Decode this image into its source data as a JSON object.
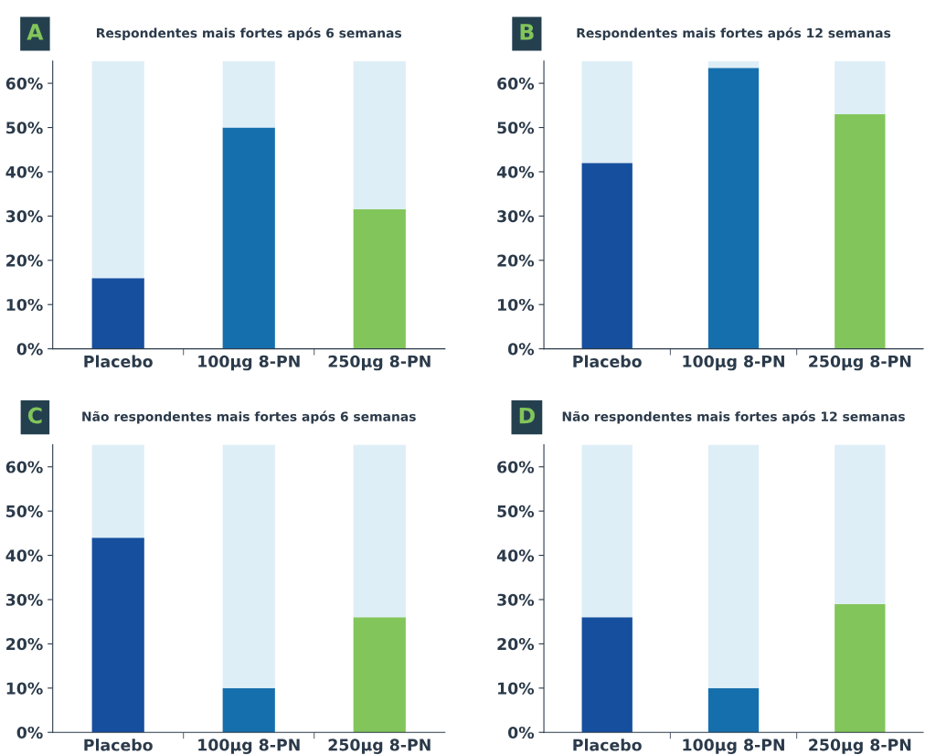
{
  "chart_data": [
    {
      "type": "bar",
      "title": "Respondentes mais fortes após 6 semanas",
      "annotations": [
        "A"
      ],
      "categories": [
        "Placebo",
        "100µg 8-PN",
        "250µg 8-PN"
      ],
      "stacked": true,
      "series": [
        {
          "colors": [
            "#154f9e",
            "#166fad",
            "#82c55a"
          ],
          "values": [
            16,
            50,
            31.5
          ]
        },
        {
          "color": "#deeef6",
          "values": [
            49,
            15,
            33.5
          ]
        }
      ],
      "ylim": [
        0,
        65
      ],
      "yticks": [
        {
          "value": 0,
          "label": "0%"
        },
        {
          "value": 10,
          "label": "10%"
        },
        {
          "value": 20,
          "label": "20%"
        },
        {
          "value": 30,
          "label": "30%"
        },
        {
          "value": 40,
          "label": "40%"
        },
        {
          "value": 50,
          "label": "50%"
        },
        {
          "value": 60,
          "label": "60%"
        }
      ],
      "grid": false
    },
    {
      "type": "bar",
      "title": "Respondentes mais fortes após 12 semanas",
      "annotations": [
        "B"
      ],
      "categories": [
        "Placebo",
        "100µg 8-PN",
        "250µg 8-PN"
      ],
      "stacked": true,
      "series": [
        {
          "colors": [
            "#154f9e",
            "#166fad",
            "#82c55a"
          ],
          "values": [
            42,
            63.5,
            53
          ]
        },
        {
          "color": "#deeef6",
          "values": [
            23,
            1.5,
            12
          ]
        }
      ],
      "ylim": [
        0,
        65
      ],
      "yticks": [
        {
          "value": 0,
          "label": "0%"
        },
        {
          "value": 10,
          "label": "10%"
        },
        {
          "value": 20,
          "label": "20%"
        },
        {
          "value": 30,
          "label": "30%"
        },
        {
          "value": 40,
          "label": "40%"
        },
        {
          "value": 50,
          "label": "50%"
        },
        {
          "value": 60,
          "label": "60%"
        }
      ],
      "grid": false
    },
    {
      "type": "bar",
      "title": "Não respondentes mais fortes após 6 semanas",
      "annotations": [
        "C"
      ],
      "categories": [
        "Placebo",
        "100µg 8-PN",
        "250µg 8-PN"
      ],
      "stacked": true,
      "series": [
        {
          "colors": [
            "#154f9e",
            "#166fad",
            "#82c55a"
          ],
          "values": [
            44,
            10,
            26
          ]
        },
        {
          "color": "#deeef6",
          "values": [
            21,
            55,
            39
          ]
        }
      ],
      "ylim": [
        0,
        65
      ],
      "yticks": [
        {
          "value": 0,
          "label": "0%"
        },
        {
          "value": 10,
          "label": "10%"
        },
        {
          "value": 20,
          "label": "20%"
        },
        {
          "value": 30,
          "label": "30%"
        },
        {
          "value": 40,
          "label": "40%"
        },
        {
          "value": 50,
          "label": "50%"
        },
        {
          "value": 60,
          "label": "60%"
        }
      ],
      "grid": false
    },
    {
      "type": "bar",
      "title": "Não respondentes mais fortes após 12 semanas",
      "annotations": [
        "D"
      ],
      "categories": [
        "Placebo",
        "100µg 8-PN",
        "250µg 8-PN"
      ],
      "stacked": true,
      "series": [
        {
          "colors": [
            "#154f9e",
            "#166fad",
            "#82c55a"
          ],
          "values": [
            26,
            10,
            29
          ]
        },
        {
          "color": "#deeef6",
          "values": [
            39,
            55,
            36
          ]
        }
      ],
      "ylim": [
        0,
        65
      ],
      "yticks": [
        {
          "value": 0,
          "label": "0%"
        },
        {
          "value": 10,
          "label": "10%"
        },
        {
          "value": 20,
          "label": "20%"
        },
        {
          "value": 30,
          "label": "30%"
        },
        {
          "value": 40,
          "label": "40%"
        },
        {
          "value": 50,
          "label": "50%"
        },
        {
          "value": 60,
          "label": "60%"
        }
      ],
      "grid": false
    }
  ]
}
